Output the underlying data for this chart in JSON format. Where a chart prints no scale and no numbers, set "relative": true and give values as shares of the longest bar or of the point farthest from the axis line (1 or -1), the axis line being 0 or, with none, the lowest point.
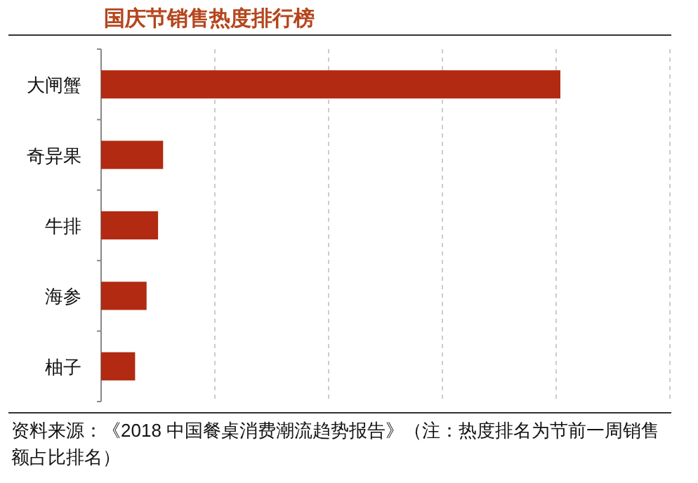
{
  "chart_data": {
    "type": "bar",
    "orientation": "horizontal",
    "relative": true,
    "title": "国庆节销售热度排行榜",
    "categories": [
      "大闸蟹",
      "奇异果",
      "牛排",
      "海参",
      "柚子"
    ],
    "values": [
      1,
      0.135,
      0.124,
      0.099,
      0.074
    ],
    "color": "#b22a12",
    "grid": "x",
    "annotations": [
      "资料来源：《2018 中国餐桌消费潮流趋势报告》（注：热度排名为节前一周销售额占比排名）"
    ]
  }
}
